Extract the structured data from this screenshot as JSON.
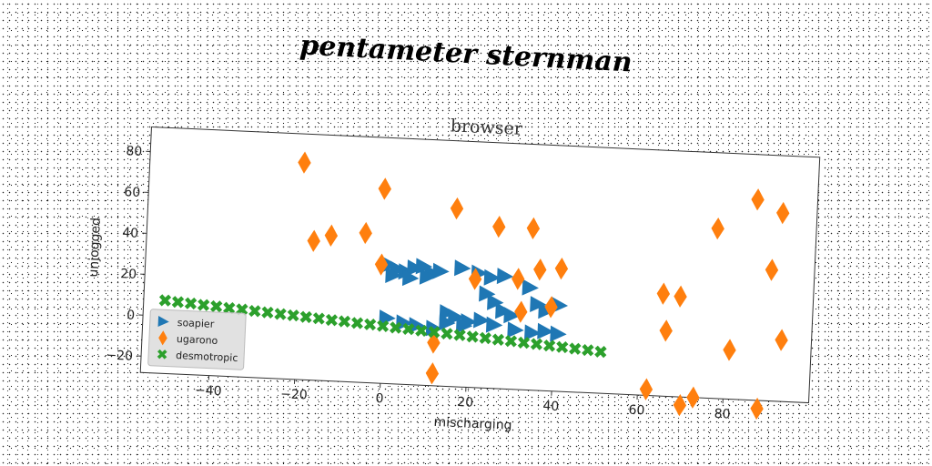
{
  "figure": {
    "suptitle": "pentameter sternman"
  },
  "colors": {
    "soapier": "#1f77b4",
    "ugarono": "#ff7f0e",
    "desmotropic": "#2ca02c"
  },
  "chart_data": {
    "type": "scatter",
    "title": "browser",
    "xlabel": "mischarging",
    "ylabel": "unjogged",
    "xlim": [
      -56,
      100
    ],
    "ylim": [
      -28,
      92
    ],
    "xticks": [
      -40,
      -20,
      0,
      20,
      40,
      60,
      80
    ],
    "yticks": [
      -20,
      0,
      20,
      40,
      60,
      80
    ],
    "grid": false,
    "legend": {
      "position": "lower-left",
      "entries": [
        "soapier",
        "ugarono",
        "desmotropic"
      ]
    },
    "series": [
      {
        "name": "soapier",
        "marker": "triangle-right",
        "points": [
          [
            1,
            30
          ],
          [
            3,
            28
          ],
          [
            5,
            27
          ],
          [
            7,
            29
          ],
          [
            9,
            30
          ],
          [
            11,
            27
          ],
          [
            13,
            28
          ],
          [
            2,
            25
          ],
          [
            6,
            24
          ],
          [
            10,
            25
          ],
          [
            18,
            30
          ],
          [
            22,
            28
          ],
          [
            25,
            26
          ],
          [
            28,
            27
          ],
          [
            24,
            18
          ],
          [
            26,
            14
          ],
          [
            28,
            10
          ],
          [
            30,
            8
          ],
          [
            34,
            22
          ],
          [
            36,
            14
          ],
          [
            38,
            11
          ],
          [
            41,
            14
          ],
          [
            15,
            8
          ],
          [
            17,
            6
          ],
          [
            20,
            4
          ],
          [
            23,
            5
          ],
          [
            26,
            3
          ],
          [
            1,
            4
          ],
          [
            5,
            2
          ],
          [
            8,
            1
          ],
          [
            12,
            0
          ],
          [
            15,
            3
          ],
          [
            19,
            2
          ],
          [
            31,
            1
          ],
          [
            35,
            0
          ],
          [
            38,
            1
          ],
          [
            41,
            0
          ]
        ]
      },
      {
        "name": "ugarono",
        "marker": "diamond",
        "points": [
          [
            -20,
            78
          ],
          [
            -17,
            40
          ],
          [
            -13,
            43
          ],
          [
            -5,
            45
          ],
          [
            -1,
            30
          ],
          [
            -1,
            67
          ],
          [
            16,
            59
          ],
          [
            26,
            51
          ],
          [
            34,
            51
          ],
          [
            21,
            25
          ],
          [
            31,
            26
          ],
          [
            36,
            31
          ],
          [
            41,
            32
          ],
          [
            39,
            13
          ],
          [
            32,
            10
          ],
          [
            12,
            -7
          ],
          [
            12,
            -22
          ],
          [
            62,
            -25
          ],
          [
            65,
            22
          ],
          [
            66,
            4
          ],
          [
            69,
            21
          ],
          [
            70,
            -32
          ],
          [
            73,
            -28
          ],
          [
            77,
            55
          ],
          [
            81,
            -4
          ],
          [
            86,
            70
          ],
          [
            88,
            -32
          ],
          [
            90,
            36
          ],
          [
            92,
            64
          ],
          [
            93,
            2
          ]
        ]
      },
      {
        "name": "desmotropic",
        "marker": "x",
        "points": [
          [
            -51,
            7.7
          ],
          [
            -48,
            7.2
          ],
          [
            -45,
            6.8
          ],
          [
            -42,
            6.3
          ],
          [
            -39,
            5.9
          ],
          [
            -36,
            5.4
          ],
          [
            -33,
            5.0
          ],
          [
            -30,
            4.5
          ],
          [
            -27,
            4.1
          ],
          [
            -24,
            3.6
          ],
          [
            -21,
            3.2
          ],
          [
            -18,
            2.7
          ],
          [
            -15,
            2.3
          ],
          [
            -12,
            1.8
          ],
          [
            -9,
            1.4
          ],
          [
            -6,
            0.9
          ],
          [
            -3,
            0.5
          ],
          [
            0,
            0.0
          ],
          [
            3,
            -0.5
          ],
          [
            6,
            -0.9
          ],
          [
            9,
            -1.4
          ],
          [
            12,
            -1.8
          ],
          [
            15,
            -2.3
          ],
          [
            18,
            -2.7
          ],
          [
            21,
            -3.2
          ],
          [
            24,
            -3.6
          ],
          [
            27,
            -4.1
          ],
          [
            30,
            -4.5
          ],
          [
            33,
            -5.0
          ],
          [
            36,
            -5.4
          ],
          [
            39,
            -5.9
          ],
          [
            42,
            -6.3
          ],
          [
            45,
            -6.8
          ],
          [
            48,
            -7.2
          ],
          [
            51,
            -7.7
          ]
        ]
      }
    ]
  }
}
